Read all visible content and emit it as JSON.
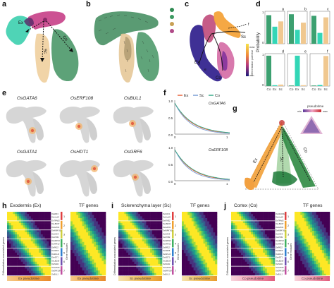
{
  "labels": {
    "a": "a",
    "b": "b",
    "c": "c",
    "d": "d",
    "e": "e",
    "f": "f",
    "g": "g",
    "h": "h",
    "i": "i",
    "j": "j"
  },
  "panel_a": {
    "lineage_ex": "Ex",
    "lineage_sc": "Sc",
    "lineage_co": "Co"
  },
  "panel_c": {
    "lineage_ex": "Ex",
    "lineage_sc": "Sc",
    "lineage_co": "Co",
    "colorbar_max": "max",
    "colorbar_min": "min",
    "colorbar_title": "Differentiation potential",
    "branch_e": "e",
    "branch_f": "f"
  },
  "panel_d": {
    "ylabel": "Probability",
    "sub_labels": [
      "a",
      "b",
      "c",
      "d",
      "e",
      "f"
    ],
    "xticks": [
      "Co",
      "Ex",
      "Sc"
    ],
    "yticks": [
      "0",
      "1"
    ]
  },
  "panel_e": {
    "genes": [
      "OsGATA6",
      "OsERF108",
      "OsBUL1",
      "OsGATA1",
      "OsHDT1",
      "OsGRF6"
    ]
  },
  "panel_f": {
    "legend": [
      "Ex",
      "Sc",
      "Co"
    ],
    "legend_colors": [
      "#e8643c",
      "#7a9fd6",
      "#3aaa8a"
    ],
    "plots": [
      {
        "gene": "OsGATA6",
        "yticks": [
          "1.0",
          "0.5",
          "0.0"
        ],
        "xticks": [
          "0",
          "1"
        ]
      },
      {
        "gene": "OsERF108",
        "yticks": [
          "1.0",
          "0.5",
          "0.0"
        ],
        "xticks": [
          "0",
          "1"
        ]
      }
    ]
  },
  "panel_g": {
    "legend_title": "pseudotime",
    "legend_min": "min",
    "legend_max": "max",
    "vertex_ex": "Ex",
    "vertex_sc": "Sc",
    "vertex_co": "Co"
  },
  "heatmaps": [
    {
      "title": "Exodermis (Ex)",
      "tf_title": "TF genes",
      "axis_left": "Differentiation associated genes",
      "axis_right": "Gene modules",
      "bar_left": "Ex pseudotime",
      "bar_right": "Ex pseudotime",
      "genes": [
        "OsERF1",
        "OsHox28",
        "OsTRAB1",
        "OsLBD37",
        "OsGATA1",
        "OsWRKY62",
        "OsNAC5",
        "OsMYB2",
        "OsbZIP23",
        "OsARF12",
        "OsRR22",
        "OsGRF6",
        "OsSPL14",
        "OsHDT1",
        "OsLBD16",
        "OsPHR2",
        "OsGATA6",
        "OsERF108",
        "OsBUL1"
      ],
      "modules": [
        "1",
        "2",
        "3",
        "4",
        "5",
        "6",
        "7"
      ]
    },
    {
      "title": "Sclerenchyma layer (Sc)",
      "tf_title": "TF genes",
      "axis_left": "Differentiation associated genes",
      "axis_right": "Gene modules",
      "bar_left": "Sc pseudotime",
      "bar_right": "Sc pseudotime",
      "genes": [
        "OsNAC1",
        "OsHox28",
        "OsMYB2",
        "OsLBD37",
        "OsGATA1",
        "OsWRKY62",
        "OsNAC5",
        "OsMYB4",
        "OsbZIP23",
        "OsARF12",
        "OsRR22",
        "OsGRF6",
        "OsSPL14",
        "OsHDT1",
        "OsLBD16",
        "OsPHR2",
        "OsGATA6",
        "OsERF108",
        "OsBUL1"
      ],
      "modules": [
        "1",
        "2",
        "3",
        "4",
        "5",
        "6",
        "7"
      ]
    },
    {
      "title": "Cortex (Co)",
      "tf_title": "TF genes",
      "axis_left": "Differentiation associated genes",
      "axis_right": "Gene modules",
      "bar_left": "Co pseudotime",
      "bar_right": "Co pseudotime",
      "genes": [
        "OsGRAS32",
        "OsHox28",
        "OsTRAB1",
        "OsLBD37",
        "OsGATA1",
        "OsWRKY62",
        "OsNAC5",
        "OsMYB2",
        "OsbZIP23",
        "OsARF12",
        "OsRR22",
        "OsGRF6",
        "OsSPL14",
        "OsHDT1",
        "OsLBD16",
        "OsPHR2",
        "OsGATA6",
        "OsERF108",
        "OsBUL1"
      ],
      "modules": [
        "1",
        "2",
        "3",
        "4",
        "5",
        "6",
        "7"
      ]
    }
  ],
  "colors": {
    "ex": "#f0cfa0",
    "sc": "#d44a8c",
    "co": "#4a9a6a",
    "root": "#35d0b0",
    "viridis_low": "#440154",
    "viridis_mid": "#21908d",
    "viridis_high": "#fde725"
  }
}
